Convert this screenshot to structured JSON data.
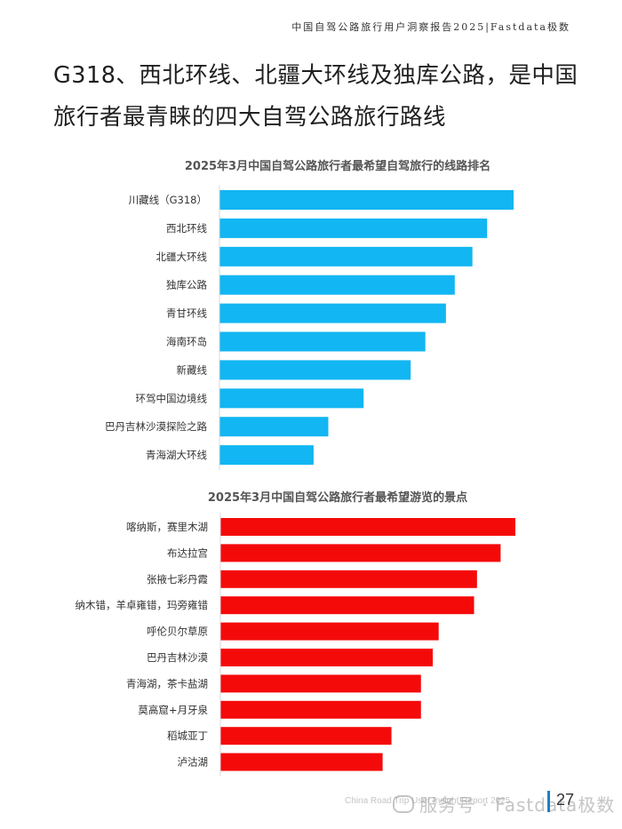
{
  "header": {
    "report_title": "中国自驾公路旅行用户洞察报告2025|Fastdata极数"
  },
  "headline": {
    "line1": "G318、西北环线、北疆大环线及独库公路，是中国",
    "line2": "旅行者最青睐的四大自驾公路旅行路线"
  },
  "chart_data": [
    {
      "type": "bar",
      "orientation": "horizontal",
      "title": "2025年3月中国自驾公路旅行者最希望自驾旅行的线路排名",
      "categories": [
        "川藏线（G318）",
        "西北环线",
        "北疆大环线",
        "独库公路",
        "青甘环线",
        "海南环岛",
        "新藏线",
        "环驾中国边境线",
        "巴丹吉林沙漠探险之路",
        "青海湖大环线"
      ],
      "values": [
        100,
        91,
        86,
        80,
        77,
        70,
        65,
        49,
        37,
        32
      ],
      "value_scale": "relative (no values printed)",
      "xlim": [
        0,
        100
      ],
      "grid": false,
      "color": "#12b6f2"
    },
    {
      "type": "bar",
      "orientation": "horizontal",
      "title": "2025年3月中国自驾公路旅行者最希望游览的景点",
      "categories": [
        "喀纳斯，赛里木湖",
        "布达拉宫",
        "张掖七彩丹霞",
        "纳木错，羊卓雍错，玛旁雍错",
        "呼伦贝尔草原",
        "巴丹吉林沙漠",
        "青海湖，茶卡盐湖",
        "莫高窟+月牙泉",
        "稻城亚丁",
        "泸沽湖"
      ],
      "values": [
        100,
        95,
        87,
        86,
        74,
        72,
        68,
        68,
        58,
        55
      ],
      "value_scale": "relative (no values printed)",
      "xlim": [
        0,
        100
      ],
      "grid": false,
      "color": "#f50a0a"
    }
  ],
  "footer": {
    "report_en": "China Road Trip User Insight Report 2025",
    "watermark": "服务号 · Fastdata极数",
    "page_number": "27"
  }
}
